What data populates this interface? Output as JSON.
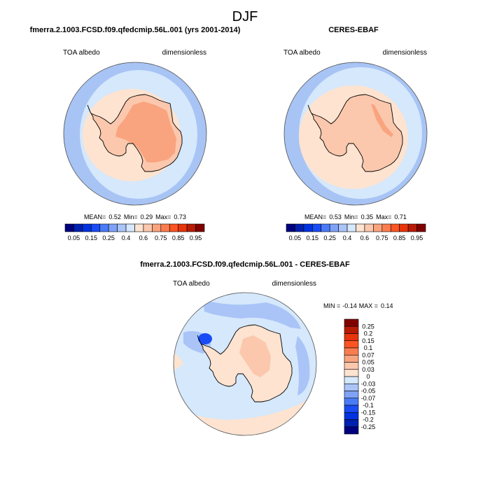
{
  "figure": {
    "title": "DJF"
  },
  "chart_data": [
    {
      "type": "heatmap",
      "projection": "south-polar-stereographic",
      "title": "fmerra.2.1003.FCSD.f09.qfedcmip.56L.001 (yrs 2001-2014)",
      "left_label": "TOA albedo",
      "right_label": "dimensionless",
      "stats": {
        "mean_label": "MEAN=",
        "mean": "0.52",
        "min_label": "Min=",
        "min": "0.29",
        "max_label": "Max=",
        "max": "0.73"
      },
      "colorbar": {
        "orientation": "horizontal",
        "levels": [
          0.05,
          0.1,
          0.15,
          0.2,
          0.25,
          0.3,
          0.4,
          0.5,
          0.6,
          0.7,
          0.75,
          0.8,
          0.85,
          0.9,
          0.95
        ],
        "tick_labels": [
          "0.05",
          "0.15",
          "0.25",
          "0.4",
          "0.6",
          "0.75",
          "0.85",
          "0.95"
        ],
        "colors": [
          "#00007f",
          "#0020b0",
          "#0032e0",
          "#1a4cf5",
          "#4a7af7",
          "#7fa2f7",
          "#aac4f7",
          "#d5e8fc",
          "#fde3d0",
          "#fbc8ad",
          "#f9a47f",
          "#fb7d4f",
          "#fc5424",
          "#e8350b",
          "#b81c05",
          "#800000"
        ]
      },
      "regions": {
        "ocean_far": "#a8c4f5",
        "ocean_near": "#d5e8fc",
        "sea_ice": "#fde3d0",
        "coast_ice": "#fbc8ad",
        "interior": "#f9a47f"
      }
    },
    {
      "type": "heatmap",
      "projection": "south-polar-stereographic",
      "title": "CERES-EBAF",
      "left_label": "TOA albedo",
      "right_label": "dimensionless",
      "stats": {
        "mean_label": "MEAN=",
        "mean": "0.53",
        "min_label": "Min=",
        "min": "0.35",
        "max_label": "Max=",
        "max": "0.71"
      },
      "colorbar": {
        "orientation": "horizontal",
        "levels": [
          0.05,
          0.1,
          0.15,
          0.2,
          0.25,
          0.3,
          0.4,
          0.5,
          0.6,
          0.7,
          0.75,
          0.8,
          0.85,
          0.9,
          0.95
        ],
        "tick_labels": [
          "0.05",
          "0.15",
          "0.25",
          "0.4",
          "0.6",
          "0.75",
          "0.85",
          "0.95"
        ],
        "colors": [
          "#00007f",
          "#0020b0",
          "#0032e0",
          "#1a4cf5",
          "#4a7af7",
          "#7fa2f7",
          "#aac4f7",
          "#d5e8fc",
          "#fde3d0",
          "#fbc8ad",
          "#f9a47f",
          "#fb7d4f",
          "#fc5424",
          "#e8350b",
          "#b81c05",
          "#800000"
        ]
      },
      "regions": {
        "ocean_far": "#a8c4f5",
        "ocean_near": "#d5e8fc",
        "sea_ice": "#fde3d0",
        "coast_ice": "#fbc8ad",
        "interior": "#f9a47f"
      }
    },
    {
      "type": "heatmap",
      "projection": "south-polar-stereographic",
      "title": "fmerra.2.1003.FCSD.f09.qfedcmip.56L.001 - CERES-EBAF",
      "left_label": "TOA albedo",
      "right_label": "dimensionless",
      "stats": {
        "min_label": "MIN =",
        "min": "-0.14",
        "max_label": "MAX =",
        "max": "0.14"
      },
      "colorbar": {
        "orientation": "vertical",
        "levels": [
          0.25,
          0.2,
          0.15,
          0.1,
          0.07,
          0.05,
          0.03,
          0,
          -0.03,
          -0.05,
          -0.07,
          -0.1,
          -0.15,
          -0.2,
          -0.25
        ],
        "tick_labels": [
          "0.25",
          "0.2",
          "0.15",
          "0.1",
          "0.07",
          "0.05",
          "0.03",
          "0",
          "-0.03",
          "-0.05",
          "-0.07",
          "-0.1",
          "-0.15",
          "-0.2",
          "-0.25"
        ],
        "colors": [
          "#800000",
          "#b81c05",
          "#e8350b",
          "#fc5424",
          "#fb7d4f",
          "#f9a47f",
          "#fbc8ad",
          "#fde3d0",
          "#d5e8fc",
          "#aac4f7",
          "#7fa2f7",
          "#4a7af7",
          "#1a4cf5",
          "#0032e0",
          "#0020b0",
          "#00007f"
        ]
      },
      "regions": {
        "ocean_far": "#d5e8fc",
        "ocean_near": "#d5e8fc",
        "sea_ice": "#fde3d0",
        "coast_ice": "#fde3d0",
        "interior": "#fbc8ad",
        "negative_patch": "#aac4f7",
        "strong_negative": "#1a4cf5"
      }
    }
  ]
}
